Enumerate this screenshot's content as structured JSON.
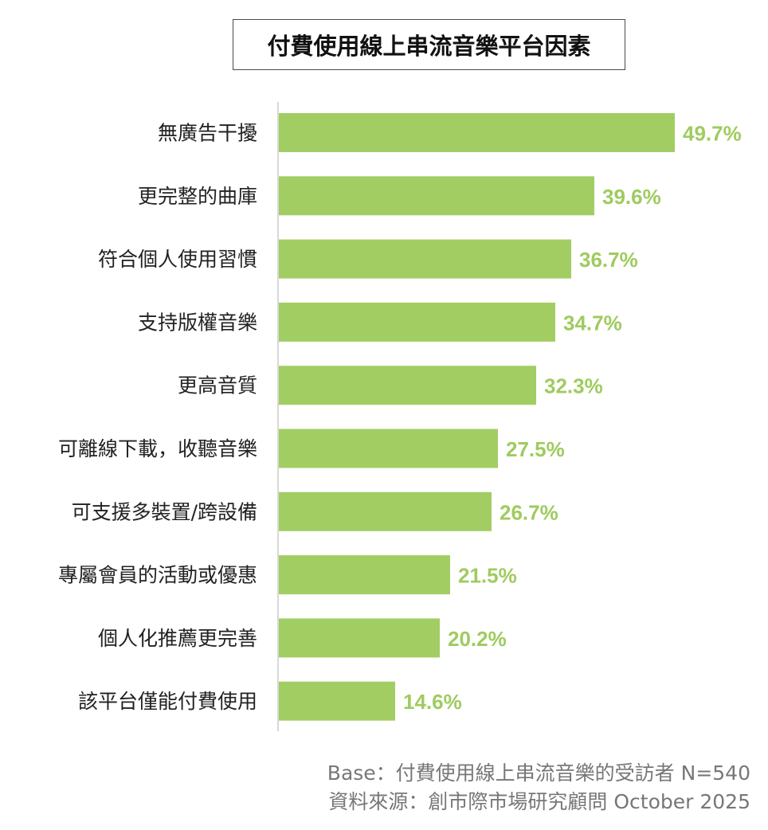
{
  "chart_data": {
    "type": "bar",
    "orientation": "horizontal",
    "title": "付費使用線上串流音樂平台因素",
    "categories": [
      "無廣告干擾",
      "更完整的曲庫",
      "符合個人使用習慣",
      "支持版權音樂",
      "更高音質",
      "可離線下載，收聽音樂",
      "可支援多裝置/跨設備",
      "專屬會員的活動或優惠",
      "個人化推薦更完善",
      "該平台僅能付費使用"
    ],
    "values": [
      49.7,
      39.6,
      36.7,
      34.7,
      32.3,
      27.5,
      26.7,
      21.5,
      20.2,
      14.6
    ],
    "value_labels": [
      "49.7%",
      "39.6%",
      "36.7%",
      "34.7%",
      "32.3%",
      "27.5%",
      "26.7%",
      "21.5%",
      "20.2%",
      "14.6%"
    ],
    "xlim": [
      0,
      50
    ],
    "grid": false,
    "colors": {
      "bar": "#a2cd63",
      "label": "#9fcb5f",
      "axis": "#cccccc"
    }
  },
  "footer": {
    "base": "Base：付費使用線上串流音樂的受訪者 N=540",
    "source": "資料來源：創市際市場研究顧問 October 2025"
  }
}
